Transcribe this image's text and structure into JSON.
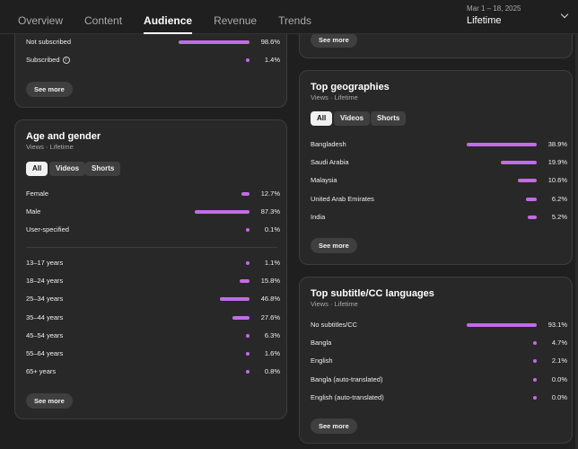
{
  "tabs": [
    "Overview",
    "Content",
    "Audience",
    "Revenue",
    "Trends"
  ],
  "date_range": {
    "sub": "Mar 1 – 18, 2025",
    "main": "Lifetime"
  },
  "accent": "#c26be8",
  "subscription": {
    "rows": [
      {
        "label": "Not subscribed",
        "value": "98.6%",
        "pct": 98.6
      },
      {
        "label": "Subscribed",
        "value": "1.4%",
        "pct": 1.4
      }
    ],
    "see_more": "See more",
    "info_icon": "i"
  },
  "top_right_see_more": "See more",
  "age_gender": {
    "title": "Age and gender",
    "subtitle": "Views · Lifetime",
    "pills": [
      "All",
      "Videos",
      "Shorts"
    ],
    "gender": [
      {
        "label": "Female",
        "value": "12.7%",
        "pct": 12.7
      },
      {
        "label": "Male",
        "value": "87.3%",
        "pct": 87.3
      },
      {
        "label": "User-specified",
        "value": "0.1%",
        "pct": 0.1
      }
    ],
    "ages": [
      {
        "label": "13–17 years",
        "value": "1.1%",
        "pct": 1.1
      },
      {
        "label": "18–24 years",
        "value": "15.8%",
        "pct": 15.8
      },
      {
        "label": "25–34 years",
        "value": "46.8%",
        "pct": 46.8
      },
      {
        "label": "35–44 years",
        "value": "27.6%",
        "pct": 27.6
      },
      {
        "label": "45–54 years",
        "value": "6.3%",
        "pct": 6.3
      },
      {
        "label": "55–64 years",
        "value": "1.6%",
        "pct": 1.6
      },
      {
        "label": "65+ years",
        "value": "0.8%",
        "pct": 0.8
      }
    ],
    "see_more": "See more"
  },
  "geographies": {
    "title": "Top geographies",
    "subtitle": "Views · Lifetime",
    "pills": [
      "All",
      "Videos",
      "Shorts"
    ],
    "rows": [
      {
        "label": "Bangladesh",
        "value": "38.9%",
        "pct": 38.9
      },
      {
        "label": "Saudi Arabia",
        "value": "19.9%",
        "pct": 19.9
      },
      {
        "label": "Malaysia",
        "value": "10.6%",
        "pct": 10.6
      },
      {
        "label": "United Arab Emirates",
        "value": "6.2%",
        "pct": 6.2
      },
      {
        "label": "India",
        "value": "5.2%",
        "pct": 5.2
      }
    ],
    "see_more": "See more"
  },
  "subtitles": {
    "title": "Top subtitle/CC languages",
    "subtitle": "Views · Lifetime",
    "rows": [
      {
        "label": "No subtitles/CC",
        "value": "93.1%",
        "pct": 93.1
      },
      {
        "label": "Bangla",
        "value": "4.7%",
        "pct": 4.7
      },
      {
        "label": "English",
        "value": "2.1%",
        "pct": 2.1
      },
      {
        "label": "Bangla (auto-translated)",
        "value": "0.0%",
        "pct": 0.0
      },
      {
        "label": "English (auto-translated)",
        "value": "0.0%",
        "pct": 0.0
      }
    ],
    "see_more": "See more"
  }
}
